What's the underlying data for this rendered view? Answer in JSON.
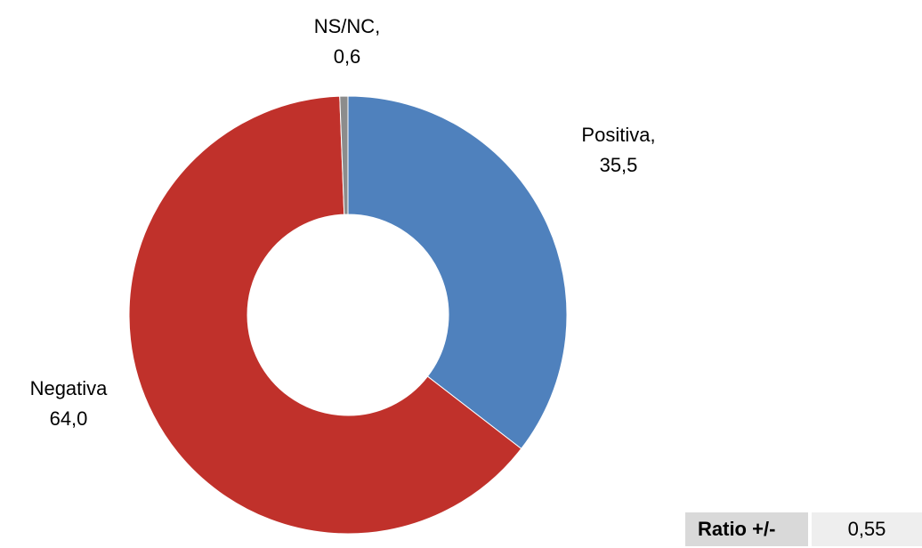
{
  "chart_data": {
    "type": "donut",
    "categories": [
      "Positiva,",
      "Negativa",
      "NS/NC,"
    ],
    "values": [
      35.5,
      64.0,
      0.6
    ],
    "value_labels": [
      "35,5",
      "64,0",
      "0,6"
    ],
    "colors": [
      "#4f81bd",
      "#c0312b",
      "#8c8c8c"
    ]
  },
  "table": {
    "label": "Ratio +/-",
    "value": "0,55"
  }
}
